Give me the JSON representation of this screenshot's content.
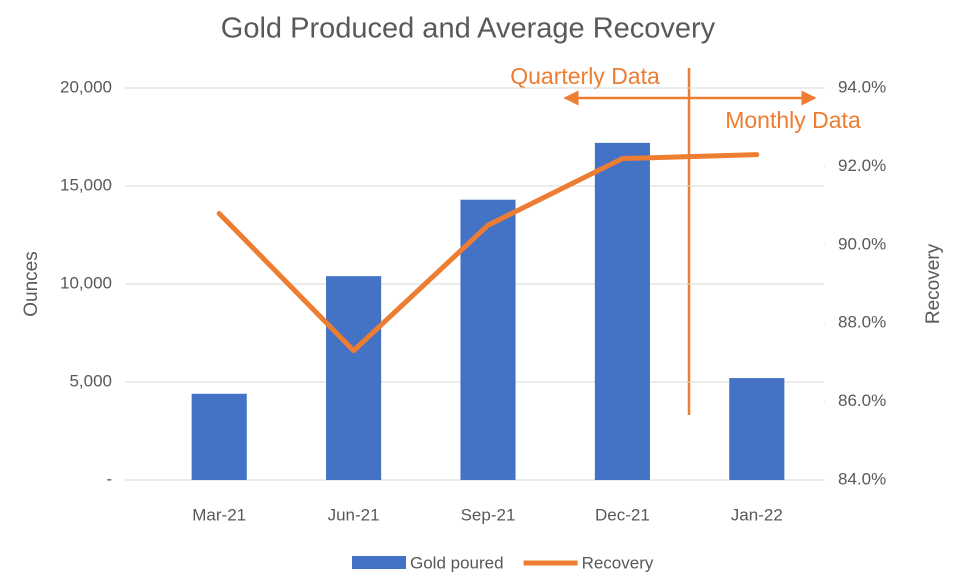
{
  "chart_data": {
    "type": "bar-line",
    "title": "Gold Produced and Average Recovery",
    "categories": [
      "Mar-21",
      "Jun-21",
      "Sep-21",
      "Dec-21",
      "Jan-22"
    ],
    "series": [
      {
        "name": "Gold poured",
        "type": "bar",
        "color": "#4472c4",
        "values": [
          4400,
          10400,
          14300,
          17200,
          5200
        ]
      },
      {
        "name": "Recovery",
        "type": "line",
        "color": "#ed7d31",
        "axis": "y2",
        "values": [
          90.8,
          87.3,
          90.5,
          92.2,
          92.3
        ]
      }
    ],
    "ylabel": "Ounces",
    "y2label": "Recovery",
    "ylim": [
      0,
      20000
    ],
    "yticks": [
      {
        "value": 0,
        "label": "-"
      },
      {
        "value": 5000,
        "label": "5,000"
      },
      {
        "value": 10000,
        "label": "10,000"
      },
      {
        "value": 15000,
        "label": "15,000"
      },
      {
        "value": 20000,
        "label": "20,000"
      }
    ],
    "y2lim": [
      84,
      94
    ],
    "y2ticks": [
      {
        "value": 84,
        "label": "84.0%"
      },
      {
        "value": 86,
        "label": "86.0%"
      },
      {
        "value": 88,
        "label": "88.0%"
      },
      {
        "value": 90,
        "label": "90.0%"
      },
      {
        "value": 92,
        "label": "92.0%"
      },
      {
        "value": 94,
        "label": "94.0%"
      }
    ],
    "grid": true,
    "legend": "bottom",
    "annotations": [
      "Quarterly Data",
      "Monthly Data"
    ]
  }
}
